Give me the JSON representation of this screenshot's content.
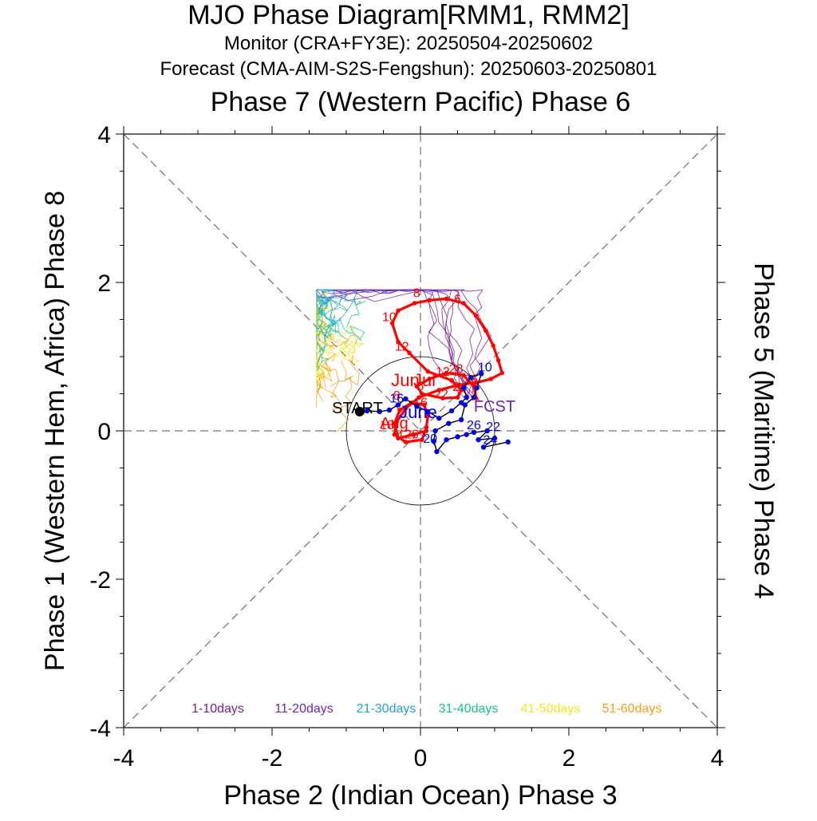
{
  "chart_data": {
    "type": "scatter",
    "title": "MJO Phase Diagram[RMM1, RMM2]",
    "subtitle_monitor": "Monitor (CRA+FY3E): 20250504-20250602",
    "subtitle_forecast": "Forecast (CMA-AIM-S2S-Fengshun): 20250603-20250801",
    "top_label": "Phase 7 (Western Pacific) Phase 6",
    "xlabel": "Phase 2 (Indian Ocean) Phase 3",
    "ylabel": "Phase 1 (Western Hem, Africa) Phase 8",
    "right_label": "Phase 5 (Maritime) Phase 4",
    "xlim": [
      -4,
      4
    ],
    "ylim": [
      -4,
      4
    ],
    "xticks": [
      "-4",
      "-2",
      "0",
      "2",
      "4"
    ],
    "yticks": [
      "-4",
      "-2",
      "0",
      "2",
      "4"
    ],
    "x_tick_values": [
      -4,
      -2,
      0,
      2,
      4
    ],
    "y_tick_values": [
      -4,
      -2,
      0,
      2,
      4
    ],
    "unit_circle_radius": 1,
    "grid": "dashed phase dividers",
    "annotations": {
      "start": "START",
      "fcst": "FCST",
      "month_june_monitor": "June",
      "month_june_forecast": "Jun",
      "month_july_forecast": "Jul",
      "month_aug_forecast": "Aug"
    },
    "legend": [
      {
        "label": "1-10days",
        "color": "#7a1e8a"
      },
      {
        "label": "11-20days",
        "color": "#6a24b8"
      },
      {
        "label": "21-30days",
        "color": "#1fa3d6"
      },
      {
        "label": "31-40days",
        "color": "#19c28a"
      },
      {
        "label": "41-50days",
        "color": "#f2e81c"
      },
      {
        "label": "51-60days",
        "color": "#f2a01c"
      }
    ],
    "colors": {
      "monitor": "#0000e6",
      "forecast_mean": "#ff0000",
      "start": "#000000",
      "grid": "#555555"
    },
    "monitor_series": {
      "name": "Monitor",
      "points": [
        [
          -0.82,
          0.26
        ],
        [
          -0.72,
          0.27
        ],
        [
          -0.55,
          0.26
        ],
        [
          -0.42,
          0.28
        ],
        [
          -0.3,
          0.35
        ],
        [
          -0.2,
          0.43
        ],
        [
          -0.05,
          0.33
        ],
        [
          0.1,
          0.26
        ],
        [
          0.25,
          0.17
        ],
        [
          0.42,
          0.27
        ],
        [
          0.55,
          0.38
        ],
        [
          0.62,
          0.45
        ],
        [
          0.58,
          0.58
        ],
        [
          0.68,
          0.72
        ],
        [
          0.82,
          0.77
        ],
        [
          0.76,
          0.58
        ],
        [
          0.72,
          0.45
        ],
        [
          0.6,
          0.35
        ],
        [
          0.55,
          0.15
        ],
        [
          0.38,
          0.1
        ],
        [
          0.2,
          0.0
        ],
        [
          0.18,
          -0.14
        ],
        [
          0.22,
          -0.28
        ],
        [
          0.35,
          -0.12
        ],
        [
          0.5,
          -0.08
        ],
        [
          0.62,
          -0.05
        ],
        [
          0.72,
          -0.02
        ],
        [
          0.9,
          0.0
        ],
        [
          0.78,
          -0.12
        ],
        [
          1.0,
          -0.1
        ],
        [
          0.85,
          -0.22
        ],
        [
          1.18,
          -0.15
        ]
      ],
      "day_labels": [
        {
          "text": "10",
          "x": 0.87,
          "y": 0.8
        },
        {
          "text": "26",
          "x": 0.72,
          "y": 0.02
        },
        {
          "text": "22",
          "x": 0.98,
          "y": 0.0
        },
        {
          "text": "24",
          "x": 0.94,
          "y": -0.18
        },
        {
          "text": "20",
          "x": 0.13,
          "y": -0.16
        },
        {
          "text": "16",
          "x": -0.32,
          "y": 0.38
        }
      ]
    },
    "forecast_mean_series": {
      "name": "Forecast ensemble mean",
      "points": [
        [
          0.75,
          0.44
        ],
        [
          0.72,
          0.6
        ],
        [
          0.58,
          0.75
        ],
        [
          0.35,
          0.78
        ],
        [
          0.12,
          0.7
        ],
        [
          -0.05,
          0.6
        ],
        [
          0.02,
          0.5
        ],
        [
          0.3,
          0.44
        ],
        [
          0.5,
          0.45
        ],
        [
          0.55,
          0.55
        ],
        [
          0.42,
          0.68
        ],
        [
          0.1,
          0.8
        ],
        [
          -0.15,
          1.05
        ],
        [
          -0.3,
          1.2
        ],
        [
          -0.38,
          1.45
        ],
        [
          -0.3,
          1.62
        ],
        [
          -0.08,
          1.72
        ],
        [
          0.12,
          1.76
        ],
        [
          0.35,
          1.78
        ],
        [
          0.58,
          1.72
        ],
        [
          0.75,
          1.55
        ],
        [
          0.88,
          1.35
        ],
        [
          0.98,
          1.15
        ],
        [
          1.05,
          0.95
        ],
        [
          1.1,
          0.78
        ],
        [
          0.95,
          0.7
        ],
        [
          0.75,
          0.65
        ],
        [
          0.52,
          0.62
        ],
        [
          0.25,
          0.55
        ],
        [
          -0.02,
          0.45
        ],
        [
          -0.2,
          0.3
        ],
        [
          -0.32,
          0.12
        ],
        [
          -0.35,
          -0.05
        ],
        [
          -0.2,
          -0.15
        ],
        [
          0.02,
          -0.12
        ],
        [
          0.08,
          0.05
        ],
        [
          0.1,
          0.2
        ],
        [
          0.05,
          0.35
        ],
        [
          -0.12,
          0.38
        ],
        [
          -0.28,
          0.28
        ],
        [
          -0.35,
          0.1
        ],
        [
          -0.3,
          -0.1
        ],
        [
          -0.1,
          -0.05
        ],
        [
          0.08,
          0.0
        ]
      ],
      "day_labels": [
        {
          "text": "8",
          "x": -0.05,
          "y": 1.8
        },
        {
          "text": "6",
          "x": 0.5,
          "y": 1.72
        },
        {
          "text": "10",
          "x": -0.42,
          "y": 1.48
        },
        {
          "text": "12",
          "x": -0.25,
          "y": 1.08
        },
        {
          "text": "28",
          "x": 0.48,
          "y": 0.78
        },
        {
          "text": "12",
          "x": 0.3,
          "y": 0.74
        },
        {
          "text": "26",
          "x": 0.68,
          "y": 0.64
        },
        {
          "text": "22",
          "x": 0.28,
          "y": 0.44
        },
        {
          "text": "2",
          "x": 0.48,
          "y": 0.54
        },
        {
          "text": "16",
          "x": 0.0,
          "y": 0.33
        },
        {
          "text": "18",
          "x": -0.45,
          "y": 0.02
        },
        {
          "text": "8",
          "x": -0.32,
          "y": 0.42
        },
        {
          "text": "4",
          "x": -0.28,
          "y": -0.12
        },
        {
          "text": "26",
          "x": -0.12,
          "y": -0.1
        },
        {
          "text": "6",
          "x": 0.0,
          "y": 0.55
        }
      ]
    }
  }
}
